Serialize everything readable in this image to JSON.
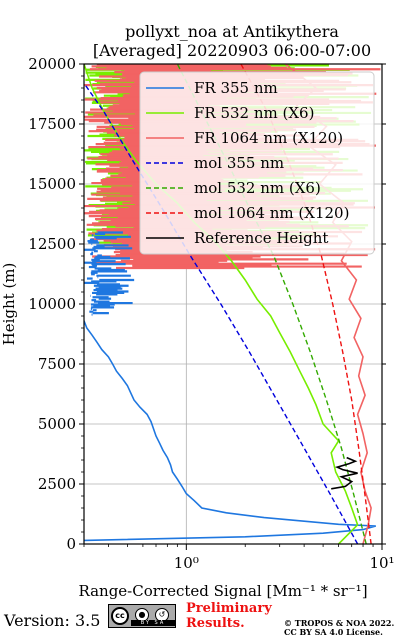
{
  "chart_data": {
    "type": "line",
    "title": "pollyxt_noa at Antikythera",
    "subtitle": "[Averaged] 20220903 06:00-07:00",
    "xlabel": "Range-Corrected Signal [Mm⁻¹ * sr⁻¹]",
    "ylabel": "Height (m)",
    "xscale": "log",
    "xlim": [
      0.3,
      10
    ],
    "ylim": [
      0,
      20000
    ],
    "x_ticks": [
      {
        "value": 1,
        "label": "10⁰"
      },
      {
        "value": 10,
        "label": "10¹"
      }
    ],
    "y_ticks": [
      0,
      2500,
      5000,
      7500,
      10000,
      12500,
      15000,
      17500,
      20000
    ],
    "y_tick_labels": [
      "0",
      "2500",
      "5000",
      "7500",
      "10000",
      "12500",
      "15000",
      "17500",
      "20000"
    ],
    "grid": true,
    "legend_position": "top-right",
    "series": [
      {
        "name": "FR 355 nm",
        "color": "#1f77e0",
        "style": "solid",
        "points": [
          [
            0.3,
            150
          ],
          [
            2,
            300
          ],
          [
            5,
            450
          ],
          [
            8,
            600
          ],
          [
            9.3,
            750
          ],
          [
            6,
            820
          ],
          [
            4,
            950
          ],
          [
            2.5,
            1100
          ],
          [
            1.6,
            1300
          ],
          [
            1.2,
            1500
          ],
          [
            1.1,
            1800
          ],
          [
            1.0,
            2100
          ],
          [
            0.95,
            2400
          ],
          [
            0.9,
            2700
          ],
          [
            0.85,
            3000
          ],
          [
            0.83,
            3300
          ],
          [
            0.8,
            3600
          ],
          [
            0.76,
            3900
          ],
          [
            0.73,
            4200
          ],
          [
            0.7,
            4500
          ],
          [
            0.68,
            4800
          ],
          [
            0.66,
            5100
          ],
          [
            0.63,
            5400
          ],
          [
            0.58,
            5700
          ],
          [
            0.54,
            6000
          ],
          [
            0.52,
            6300
          ],
          [
            0.5,
            6600
          ],
          [
            0.47,
            6900
          ],
          [
            0.44,
            7200
          ],
          [
            0.42,
            7500
          ],
          [
            0.4,
            7800
          ],
          [
            0.37,
            8100
          ],
          [
            0.35,
            8400
          ],
          [
            0.33,
            8700
          ],
          [
            0.31,
            9000
          ],
          [
            0.3,
            9300
          ]
        ]
      },
      {
        "name": "FR 532 nm (X6)",
        "color": "#77ee00",
        "style": "solid",
        "points": [
          [
            6,
            0
          ],
          [
            7.5,
            800
          ],
          [
            7,
            1500
          ],
          [
            6.5,
            2200
          ],
          [
            5.8,
            3000
          ],
          [
            5.5,
            3800
          ],
          [
            6,
            4300
          ],
          [
            5,
            5000
          ],
          [
            4.6,
            5800
          ],
          [
            4.2,
            6500
          ],
          [
            3.8,
            7200
          ],
          [
            3.4,
            8000
          ],
          [
            3,
            8800
          ],
          [
            2.7,
            9500
          ],
          [
            2.3,
            10200
          ],
          [
            2,
            11000
          ],
          [
            1.7,
            11800
          ],
          [
            1.4,
            12600
          ],
          [
            1.1,
            13400
          ],
          [
            0.9,
            14200
          ],
          [
            0.7,
            15000
          ],
          [
            0.55,
            16000
          ],
          [
            0.45,
            17000
          ],
          [
            0.38,
            18000
          ],
          [
            0.33,
            19000
          ],
          [
            0.3,
            20000
          ]
        ]
      },
      {
        "name": "FR 1064 nm (X120)",
        "color": "#f26363",
        "style": "solid",
        "points": [
          [
            8,
            0
          ],
          [
            8.5,
            800
          ],
          [
            8.8,
            1500
          ],
          [
            8.2,
            2200
          ],
          [
            7.8,
            3000
          ],
          [
            8.4,
            3800
          ],
          [
            8,
            4600
          ],
          [
            7.5,
            5400
          ],
          [
            8.2,
            6200
          ],
          [
            7.6,
            7000
          ],
          [
            8,
            7800
          ],
          [
            7.2,
            8600
          ],
          [
            7.8,
            9400
          ],
          [
            6.8,
            10200
          ],
          [
            7.4,
            11000
          ],
          [
            6.2,
            11800
          ],
          [
            7,
            12600
          ],
          [
            5.6,
            13400
          ],
          [
            6.4,
            14200
          ],
          [
            4.8,
            15000
          ],
          [
            5.8,
            15800
          ],
          [
            4.2,
            16600
          ],
          [
            5.2,
            17400
          ],
          [
            3.6,
            18200
          ],
          [
            4.6,
            19000
          ],
          [
            3.2,
            20000
          ]
        ]
      },
      {
        "name": "mol 355 nm",
        "color": "#0000dd",
        "style": "dashed",
        "points": [
          [
            7.5,
            0
          ],
          [
            5.5,
            2000
          ],
          [
            4,
            4000
          ],
          [
            2.9,
            6000
          ],
          [
            2.1,
            8000
          ],
          [
            1.5,
            10000
          ],
          [
            1.05,
            12000
          ],
          [
            0.75,
            14000
          ],
          [
            0.53,
            16000
          ],
          [
            0.38,
            18000
          ],
          [
            0.3,
            19200
          ]
        ]
      },
      {
        "name": "mol 532 nm (X6)",
        "color": "#33aa00",
        "style": "dashed",
        "points": [
          [
            8.3,
            0
          ],
          [
            7.2,
            2000
          ],
          [
            6.2,
            4000
          ],
          [
            5.2,
            6000
          ],
          [
            4.3,
            8000
          ],
          [
            3.5,
            10000
          ],
          [
            2.8,
            12000
          ],
          [
            2.1,
            14000
          ],
          [
            1.6,
            16000
          ],
          [
            1.2,
            18000
          ],
          [
            0.9,
            20000
          ]
        ]
      },
      {
        "name": "mol 1064 nm (X120)",
        "color": "#ee1111",
        "style": "dashed",
        "points": [
          [
            8.8,
            0
          ],
          [
            8.2,
            2000
          ],
          [
            7.6,
            4000
          ],
          [
            7.0,
            6000
          ],
          [
            6.3,
            8000
          ],
          [
            5.6,
            10000
          ],
          [
            4.9,
            12000
          ],
          [
            4.1,
            14000
          ],
          [
            3.3,
            16000
          ],
          [
            2.6,
            18000
          ],
          [
            1.9,
            20000
          ]
        ]
      },
      {
        "name": "Reference Height",
        "color": "#000000",
        "style": "solid",
        "points": [
          [
            5.5,
            2300
          ],
          [
            6.5,
            2400
          ],
          [
            7,
            2600
          ],
          [
            6.2,
            2800
          ],
          [
            7.5,
            2950
          ],
          [
            6.3,
            3100
          ],
          [
            5.9,
            3200
          ],
          [
            6.8,
            3350
          ],
          [
            7.3,
            3450
          ],
          [
            6.6,
            3600
          ]
        ]
      }
    ]
  },
  "noise_bands": [
    {
      "color": "#77ee00",
      "x_min": 0.3,
      "x_max": 9.3,
      "height_from": 12500,
      "height_to": 20000
    },
    {
      "color": "#f26363",
      "x_min": 0.3,
      "x_max": 10,
      "height_from": 11500,
      "height_to": 20000
    },
    {
      "color": "#1f77e0",
      "x_min": 0.3,
      "x_max": 0.36,
      "height_from": 9500,
      "height_to": 13000
    }
  ],
  "footer": {
    "version": "Version: 3.5",
    "cc_logo": "cc",
    "cc_strip": "BY SA",
    "cc_icons": [
      "by-icon",
      "sa-icon"
    ],
    "preliminary_line1": "Preliminary",
    "preliminary_line2": "Results.",
    "copyright_line1": "© TROPOS & NOA 2022.",
    "copyright_line2": "CC BY SA 4.0 License."
  }
}
